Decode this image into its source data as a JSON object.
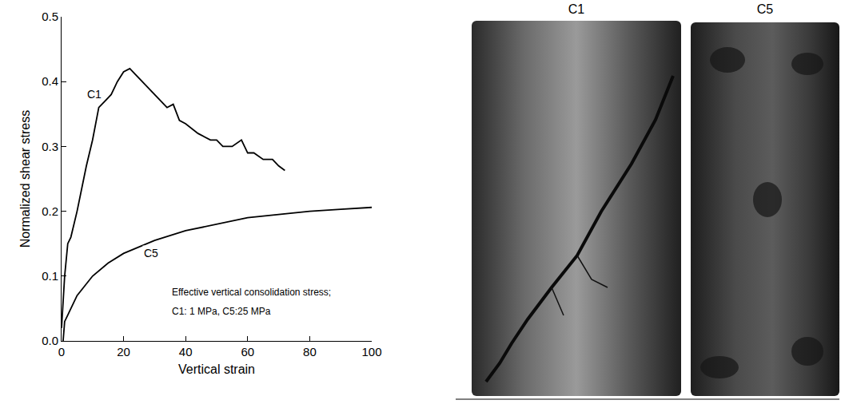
{
  "chart_data": {
    "type": "line",
    "x_label": "Vertical strain",
    "y_label": "Normalized shear stress",
    "xlim": [
      0,
      100
    ],
    "xticks": [
      0,
      20,
      40,
      60,
      80,
      {
        "value": 100,
        "label": "100"
      }
    ],
    "ylim": [
      0,
      0.5
    ],
    "yticks": [
      {
        "value": 0,
        "label": "0.0"
      },
      0.1,
      0.2,
      0.3,
      0.4,
      0.5
    ],
    "grid": false,
    "series": [
      {
        "name": "C1",
        "color": "#000000",
        "line_style": "solid",
        "x": [
          0,
          1,
          2,
          3,
          5,
          8,
          10,
          12,
          14,
          16,
          18,
          20,
          22,
          24,
          26,
          28,
          30,
          32,
          34,
          36,
          38,
          40,
          44,
          48,
          50,
          52,
          55,
          58,
          60,
          62,
          65,
          68,
          70,
          72
        ],
        "values": [
          0.02,
          0.1,
          0.15,
          0.16,
          0.2,
          0.27,
          0.31,
          0.36,
          0.37,
          0.38,
          0.4,
          0.415,
          0.42,
          0.41,
          0.4,
          0.39,
          0.38,
          0.37,
          0.36,
          0.365,
          0.34,
          0.335,
          0.32,
          0.31,
          0.31,
          0.3,
          0.3,
          0.31,
          0.29,
          0.29,
          0.28,
          0.28,
          0.27,
          0.263
        ]
      },
      {
        "name": "C5",
        "color": "#000000",
        "line_style": "solid",
        "x": [
          0.5,
          1,
          2,
          5,
          10,
          15,
          20,
          30,
          40,
          50,
          60,
          70,
          80,
          90,
          100
        ],
        "values": [
          0,
          0.03,
          0.04,
          0.07,
          0.1,
          0.12,
          0.135,
          0.155,
          0.17,
          0.18,
          0.19,
          0.195,
          0.2,
          0.203,
          0.206
        ]
      }
    ],
    "annotations": [
      {
        "text": "C1",
        "x": 13.5,
        "y": 0.38
      },
      {
        "text": "C5",
        "x": 26,
        "y": 0.135
      },
      {
        "text": "Effective vertical consolidation stress;",
        "x": 35,
        "y": 0.075
      },
      {
        "text": "C1: 1 MPa, C5:25 MPa",
        "x": 35,
        "y": 0.045
      }
    ]
  },
  "photos": {
    "labels": [
      "C1",
      "C5"
    ]
  }
}
